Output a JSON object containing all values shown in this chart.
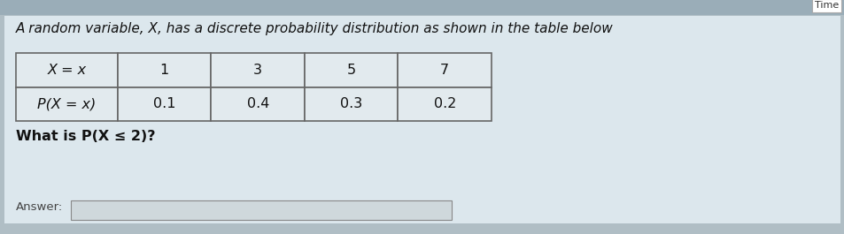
{
  "title": "A random variable, X, has a discrete probability distribution as shown in the table below",
  "row1_header": "X = x",
  "row2_header": "P(X = x)",
  "x_values": [
    "1",
    "3",
    "5",
    "7"
  ],
  "p_values": [
    "0.1",
    "0.4",
    "0.3",
    "0.2"
  ],
  "question": "What is P(X ≤ 2)?",
  "answer_label": "Answer:",
  "time_label": "Time",
  "outer_bg": "#b0bec5",
  "content_bg": "#cfd8dc",
  "table_cell_bg": "#dce3e8",
  "border_color": "#666666",
  "answer_box_color": "#d0d8de",
  "title_fontsize": 11.0,
  "table_fontsize": 11.5,
  "question_fontsize": 11.5
}
